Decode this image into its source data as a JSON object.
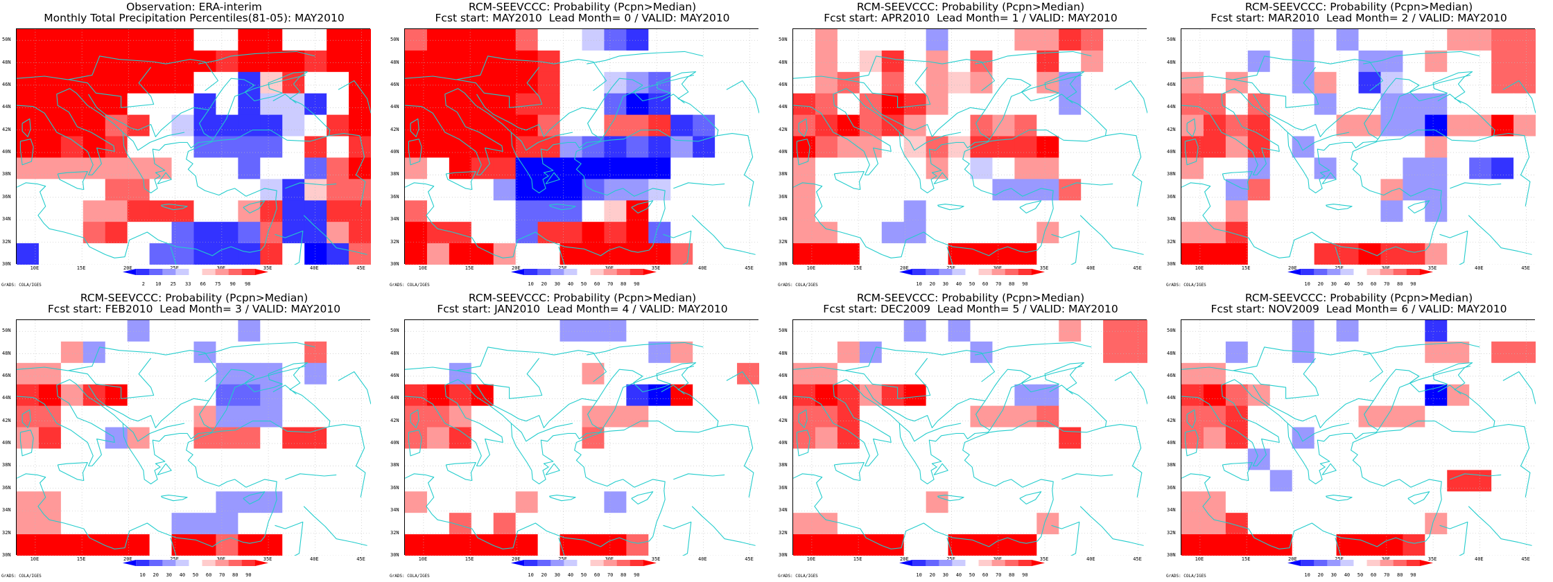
{
  "colors": {
    "palette": [
      "#0000ff",
      "#3333ff",
      "#6666ff",
      "#9999ff",
      "#ccccff",
      "#ffffff",
      "#ffcccc",
      "#ff9999",
      "#ff6666",
      "#ff3333",
      "#ff0000"
    ],
    "coast": "#22cccc",
    "grid": "#bbbbbb"
  },
  "map": {
    "lon_range": [
      8,
      46
    ],
    "lat_range": [
      30,
      51
    ],
    "lon_ticks": [
      "10E",
      "15E",
      "20E",
      "25E",
      "30E",
      "35E",
      "40E",
      "45E"
    ],
    "lat_ticks": [
      "30N",
      "32N",
      "34N",
      "36N",
      "38N",
      "40N",
      "42N",
      "44N",
      "46N",
      "48N",
      "50N"
    ]
  },
  "credit": "GrADS: COLA/IGES",
  "panels": [
    {
      "title1": "Observation: ERA-interim",
      "title2": "Monthly Total Precipitation Percentiles(81-05): MAY2010",
      "cbar_labels": [
        "2",
        "10",
        "25",
        "33",
        "66",
        "75",
        "90",
        "98"
      ],
      "grid": [
        "AAAAAAAA55AA55AA",
        "AAAAAAAAA9AAA9AA",
        "AAAAAAAA5516955A",
        "AAAAA5551514415A",
        "AAAA89541111459A",
        "AA9A955522225959",
        "777777755525528A",
        "5555885555541688",
        "5557799955791199",
        "5558955211281179",
        "1555552211195018"
      ]
    },
    {
      "title1": "RCM-SEEVCCC: Probability (Pcpn>Median)",
      "title2": "Fcst start: MAY2010  Lead Month= 0 / VALID: MAY2010",
      "cbar_labels": [
        "10",
        "20",
        "30",
        "40",
        "50",
        "60",
        "70",
        "80",
        "90"
      ],
      "grid": [
        "8AAAA85542155555",
        "AAAAAA9555555555",
        "AAAAAA9554325555",
        "AAAAA99552015555",
        "AAAAAA8558891255",
        "AAAAA99321213155",
        "75A9900000005555",
        "5555300023345555",
        "8555522256A55555",
        "A9955299A9A25555",
        "A7AA755AAAAA8555"
      ]
    },
    {
      "title1": "RCM-SEEVCCC: Probability (Pcpn>Median)",
      "title2": "Fcst start: APR2010  Lead Month= 1 / VALID: MAY2010",
      "cbar_labels": [
        "10",
        "20",
        "30",
        "40",
        "50",
        "60",
        "70",
        "80",
        "90"
      ],
      "grid": [
        "5755553555779855",
        "5756957585595755",
        "5785857675573555",
        "9858A97555553555",
        "89A8975587855555",
        "A8775686999A5555",
        "7555557545775555",
        "7555555553338555",
        "7555535555555555",
        "7755335555575555",
        "AAA5555AAAA55555"
      ]
    },
    {
      "title1": "RCM-SEEVCCC: Probability (Pcpn>Median)",
      "title2": "Fcst start: MAR2010  Lead Month= 2 / VALID: MAY2010",
      "cbar_labels": [
        "10",
        "20",
        "30",
        "40",
        "50",
        "60",
        "70",
        "80",
        "90"
      ],
      "grid": [
        "5555535355557788",
        "5553535533575588",
        "7575537514555588",
        "8858553553335555",
        "79895557733077A7",
        "9979535555575555",
        "7553553555335215",
        "5538555557335555",
        "5575555553535555",
        "7795555555555555",
        "AAA55599A9975555"
      ]
    },
    {
      "title1": "RCM-SEEVCCC: Probability (Pcpn>Median)",
      "title2": "Fcst start: FEB2010  Lead Month= 3 / VALID: MAY2010",
      "cbar_labels": [
        "10",
        "20",
        "30",
        "40",
        "50",
        "60",
        "70",
        "80",
        "90"
      ],
      "grid": [
        "5555535555355555",
        "5573555535555855",
        "7755555553335355",
        "9A79A55552235555",
        "8855555573335555",
        "7955375588859955",
        "5555555555555555",
        "5555555555555555",
        "7755555553335555",
        "7755555333555555",
        "AAAAAA5AA8AA5555"
      ]
    },
    {
      "title1": "RCM-SEEVCCC: Probability (Pcpn>Median)",
      "title2": "Fcst start: JAN2010  Lead Month= 4 / VALID: MAY2010",
      "cbar_labels": [
        "10",
        "20",
        "30",
        "40",
        "50",
        "60",
        "70",
        "80",
        "90"
      ],
      "grid": [
        "5555555333555555",
        "5555555555537555",
        "5535555575555558",
        "9A9A55555510A555",
        "8875555577755555",
        "8795555585555555",
        "5555555555555555",
        "5555555555555555",
        "7555575553555555",
        "5585855555555555",
        "AAAAAA5AAA855555"
      ]
    },
    {
      "title1": "RCM-SEEVCCC: Probability (Pcpn>Median)",
      "title2": "Fcst start: DEC2009  Lead Month= 5 / VALID: MAY2010",
      "cbar_labels": [
        "10",
        "20",
        "30",
        "40",
        "50",
        "60",
        "70",
        "80",
        "90"
      ],
      "grid": [
        "5555535355557588",
        "5573555535555588",
        "7755555555555555",
        "9A979A5555335555",
        "8895555577785555",
        "8795555555559555",
        "5555555555555555",
        "5555555555555555",
        "5555557555555555",
        "7755555555575555",
        "AAAAA55AAAA55555"
      ]
    },
    {
      "title1": "RCM-SEEVCCC: Probability (Pcpn>Median)",
      "title2": "Fcst start: NOV2009  Lead Month= 6 / VALID: MAY2010",
      "cbar_labels": [
        "10",
        "20",
        "30",
        "40",
        "50",
        "60",
        "70",
        "80",
        "90"
      ],
      "grid": [
        "5555535355515555",
        "5535535555577588",
        "7755555555555555",
        "9A87555555507555",
        "8895555577755555",
        "8795535555555555",
        "5553555555555555",
        "5555355555559955",
        "7755555555555555",
        "7795555555575555",
        "AAAAA55AAA955555"
      ]
    }
  ]
}
